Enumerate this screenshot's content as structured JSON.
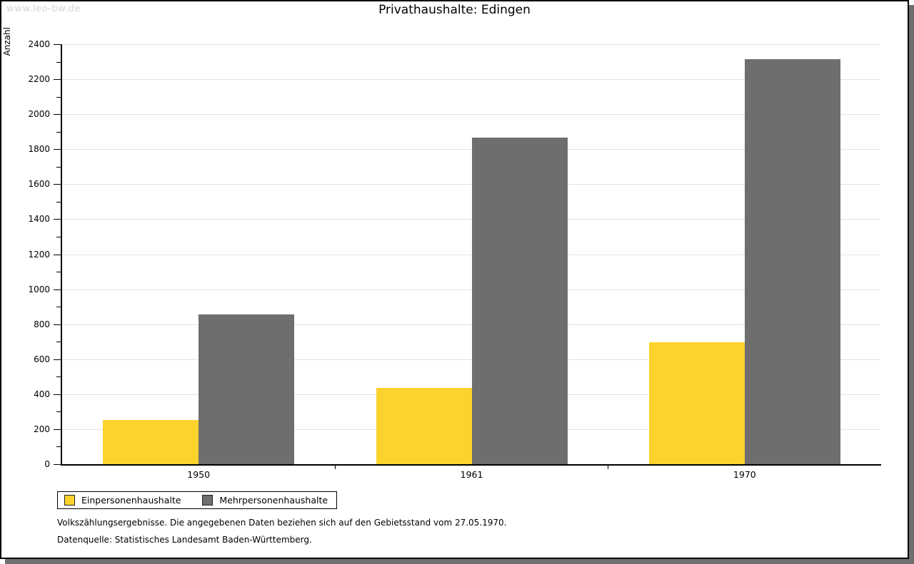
{
  "watermark": "www.leo-bw.de",
  "title": "Privathaushalte: Edingen",
  "chart_data": {
    "type": "bar",
    "title": "Privathaushalte: Edingen",
    "xlabel": "",
    "ylabel": "Anzahl",
    "categories": [
      "1950",
      "1961",
      "1970"
    ],
    "series": [
      {
        "name": "Einpersonenhaushalte",
        "color": "#FCD32D",
        "values": [
          251,
          437,
          696
        ]
      },
      {
        "name": "Mehrpersonenhaushalte",
        "color": "#6E6E6E",
        "values": [
          854,
          1866,
          2316
        ]
      }
    ],
    "ylim": [
      0,
      2400
    ],
    "y_major_step": 200,
    "y_minor_step": 100,
    "grid": true,
    "legend_position": "bottom-left"
  },
  "footer": {
    "line1": "Volkszählungsergebnisse. Die angegebenen Daten beziehen sich auf den Gebietsstand vom 27.05.1970.",
    "line2": "Datenquelle: Statistisches Landesamt Baden-Württemberg."
  },
  "colors": {
    "grid": "#E2E2E2",
    "axis": "#000000",
    "watermark": "#D4D4D4",
    "shadow": "#6F6F6F"
  }
}
